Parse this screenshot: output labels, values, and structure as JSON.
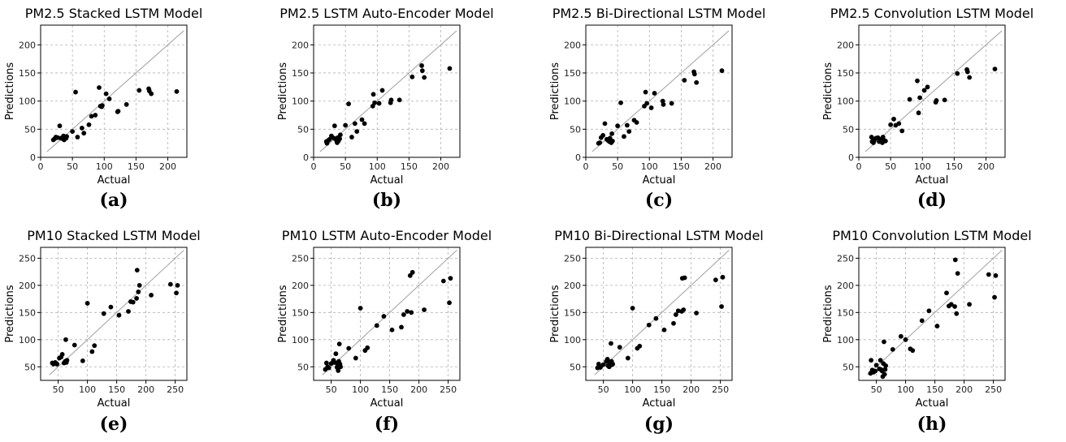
{
  "chart_data": [
    {
      "panel": "(a)",
      "type": "scatter",
      "title": "PM2.5 Stacked LSTM Model",
      "xlabel": "Actual",
      "ylabel": "Predictions",
      "xlim": [
        0,
        230
      ],
      "ylim": [
        0,
        235
      ],
      "xticks": [
        0,
        50,
        100,
        150,
        200
      ],
      "yticks": [
        0,
        50,
        100,
        150,
        200
      ],
      "diagonal": [
        10,
        225
      ],
      "grid": true,
      "points": [
        [
          20,
          31
        ],
        [
          22,
          33
        ],
        [
          24,
          36
        ],
        [
          27,
          35
        ],
        [
          30,
          56
        ],
        [
          32,
          34
        ],
        [
          35,
          33
        ],
        [
          36,
          38
        ],
        [
          37,
          31
        ],
        [
          38,
          36
        ],
        [
          40,
          34
        ],
        [
          41,
          37
        ],
        [
          50,
          46
        ],
        [
          55,
          116
        ],
        [
          58,
          36
        ],
        [
          65,
          52
        ],
        [
          68,
          43
        ],
        [
          76,
          58
        ],
        [
          80,
          73
        ],
        [
          86,
          75
        ],
        [
          92,
          124
        ],
        [
          94,
          91
        ],
        [
          96,
          90
        ],
        [
          97,
          92
        ],
        [
          103,
          113
        ],
        [
          108,
          104
        ],
        [
          121,
          81
        ],
        [
          122,
          82
        ],
        [
          135,
          94
        ],
        [
          155,
          119
        ],
        [
          170,
          122
        ],
        [
          171,
          118
        ],
        [
          174,
          113
        ],
        [
          214,
          117
        ]
      ]
    },
    {
      "panel": "(b)",
      "type": "scatter",
      "title": "PM2.5 LSTM Auto-Encoder Model",
      "xlabel": "Actual",
      "ylabel": "Predictions",
      "xlim": [
        0,
        230
      ],
      "ylim": [
        0,
        235
      ],
      "xticks": [
        0,
        50,
        100,
        150,
        200
      ],
      "yticks": [
        0,
        50,
        100,
        150,
        200
      ],
      "diagonal": [
        10,
        225
      ],
      "grid": true,
      "points": [
        [
          20,
          28
        ],
        [
          21,
          25
        ],
        [
          23,
          30
        ],
        [
          25,
          32
        ],
        [
          28,
          38
        ],
        [
          32,
          34
        ],
        [
          33,
          56
        ],
        [
          36,
          30
        ],
        [
          37,
          26
        ],
        [
          38,
          35
        ],
        [
          39,
          29
        ],
        [
          41,
          33
        ],
        [
          42,
          40
        ],
        [
          50,
          57
        ],
        [
          55,
          95
        ],
        [
          60,
          36
        ],
        [
          65,
          60
        ],
        [
          68,
          46
        ],
        [
          76,
          67
        ],
        [
          80,
          60
        ],
        [
          93,
          91
        ],
        [
          94,
          112
        ],
        [
          96,
          97
        ],
        [
          103,
          96
        ],
        [
          108,
          119
        ],
        [
          121,
          97
        ],
        [
          122,
          102
        ],
        [
          135,
          102
        ],
        [
          155,
          143
        ],
        [
          170,
          163
        ],
        [
          171,
          154
        ],
        [
          174,
          142
        ],
        [
          214,
          158
        ]
      ]
    },
    {
      "panel": "(c)",
      "type": "scatter",
      "title": "PM2.5 Bi-Directional LSTM Model",
      "xlabel": "Actual",
      "ylabel": "Predictions",
      "xlim": [
        0,
        230
      ],
      "ylim": [
        0,
        235
      ],
      "xticks": [
        0,
        50,
        100,
        150,
        200
      ],
      "yticks": [
        0,
        50,
        100,
        150,
        200
      ],
      "diagonal": [
        10,
        225
      ],
      "grid": true,
      "points": [
        [
          20,
          25
        ],
        [
          22,
          26
        ],
        [
          24,
          35
        ],
        [
          27,
          39
        ],
        [
          30,
          60
        ],
        [
          33,
          32
        ],
        [
          35,
          30
        ],
        [
          37,
          28
        ],
        [
          38,
          34
        ],
        [
          40,
          26
        ],
        [
          41,
          42
        ],
        [
          42,
          29
        ],
        [
          50,
          56
        ],
        [
          55,
          97
        ],
        [
          60,
          37
        ],
        [
          65,
          57
        ],
        [
          68,
          46
        ],
        [
          76,
          66
        ],
        [
          80,
          62
        ],
        [
          92,
          91
        ],
        [
          94,
          116
        ],
        [
          96,
          96
        ],
        [
          103,
          88
        ],
        [
          108,
          114
        ],
        [
          121,
          100
        ],
        [
          122,
          94
        ],
        [
          135,
          96
        ],
        [
          155,
          137
        ],
        [
          170,
          152
        ],
        [
          171,
          148
        ],
        [
          174,
          133
        ],
        [
          214,
          154
        ]
      ]
    },
    {
      "panel": "(d)",
      "type": "scatter",
      "title": "PM2.5 Convolution LSTM Model",
      "xlabel": "Actual",
      "ylabel": "Predictions",
      "xlim": [
        0,
        230
      ],
      "ylim": [
        0,
        235
      ],
      "xticks": [
        0,
        50,
        100,
        150,
        200
      ],
      "yticks": [
        0,
        50,
        100,
        150,
        200
      ],
      "diagonal": [
        10,
        225
      ],
      "grid": true,
      "points": [
        [
          20,
          36
        ],
        [
          21,
          28
        ],
        [
          23,
          26
        ],
        [
          24,
          30
        ],
        [
          27,
          34
        ],
        [
          30,
          35
        ],
        [
          32,
          28
        ],
        [
          34,
          32
        ],
        [
          36,
          30
        ],
        [
          37,
          26
        ],
        [
          38,
          36
        ],
        [
          40,
          30
        ],
        [
          42,
          29
        ],
        [
          50,
          58
        ],
        [
          55,
          68
        ],
        [
          58,
          57
        ],
        [
          63,
          60
        ],
        [
          68,
          47
        ],
        [
          80,
          103
        ],
        [
          92,
          136
        ],
        [
          94,
          79
        ],
        [
          96,
          106
        ],
        [
          103,
          119
        ],
        [
          108,
          125
        ],
        [
          121,
          98
        ],
        [
          122,
          101
        ],
        [
          135,
          102
        ],
        [
          155,
          149
        ],
        [
          170,
          156
        ],
        [
          171,
          152
        ],
        [
          174,
          142
        ],
        [
          214,
          157
        ]
      ]
    },
    {
      "panel": "(e)",
      "type": "scatter",
      "title": "PM10 Stacked LSTM Model",
      "xlabel": "Actual",
      "ylabel": "Predictions",
      "xlim": [
        20,
        270
      ],
      "ylim": [
        25,
        270
      ],
      "xticks": [
        50,
        100,
        150,
        200,
        250
      ],
      "yticks": [
        50,
        100,
        150,
        200,
        250
      ],
      "diagonal": [
        35,
        265
      ],
      "grid": true,
      "points": [
        [
          40,
          57
        ],
        [
          42,
          55
        ],
        [
          45,
          58
        ],
        [
          48,
          55
        ],
        [
          52,
          66
        ],
        [
          55,
          68
        ],
        [
          57,
          73
        ],
        [
          60,
          57
        ],
        [
          62,
          60
        ],
        [
          63,
          100
        ],
        [
          64,
          58
        ],
        [
          65,
          62
        ],
        [
          78,
          90
        ],
        [
          92,
          61
        ],
        [
          100,
          167
        ],
        [
          108,
          78
        ],
        [
          112,
          89
        ],
        [
          128,
          148
        ],
        [
          140,
          160
        ],
        [
          154,
          145
        ],
        [
          170,
          152
        ],
        [
          174,
          170
        ],
        [
          178,
          169
        ],
        [
          184,
          176
        ],
        [
          185,
          228
        ],
        [
          187,
          188
        ],
        [
          189,
          200
        ],
        [
          209,
          182
        ],
        [
          242,
          202
        ],
        [
          252,
          186
        ],
        [
          254,
          200
        ]
      ]
    },
    {
      "panel": "(f)",
      "type": "scatter",
      "title": "PM10 LSTM Auto-Encoder Model",
      "xlabel": "Actual",
      "ylabel": "Predictions",
      "xlim": [
        20,
        270
      ],
      "ylim": [
        25,
        270
      ],
      "xticks": [
        50,
        100,
        150,
        200,
        250
      ],
      "yticks": [
        50,
        100,
        150,
        200,
        250
      ],
      "diagonal": [
        35,
        265
      ],
      "grid": true,
      "points": [
        [
          40,
          45
        ],
        [
          42,
          57
        ],
        [
          44,
          50
        ],
        [
          46,
          48
        ],
        [
          50,
          56
        ],
        [
          54,
          62
        ],
        [
          56,
          58
        ],
        [
          58,
          74
        ],
        [
          60,
          49
        ],
        [
          61,
          54
        ],
        [
          62,
          43
        ],
        [
          63,
          60
        ],
        [
          64,
          92
        ],
        [
          65,
          55
        ],
        [
          66,
          50
        ],
        [
          80,
          84
        ],
        [
          92,
          66
        ],
        [
          100,
          158
        ],
        [
          108,
          80
        ],
        [
          112,
          85
        ],
        [
          128,
          126
        ],
        [
          140,
          143
        ],
        [
          154,
          118
        ],
        [
          170,
          123
        ],
        [
          174,
          146
        ],
        [
          180,
          152
        ],
        [
          185,
          218
        ],
        [
          187,
          150
        ],
        [
          189,
          224
        ],
        [
          209,
          155
        ],
        [
          242,
          208
        ],
        [
          252,
          168
        ],
        [
          254,
          213
        ]
      ]
    },
    {
      "panel": "(g)",
      "type": "scatter",
      "title": "PM10 Bi-Directional LSTM Model",
      "xlabel": "Actual",
      "ylabel": "Predictions",
      "xlim": [
        20,
        270
      ],
      "ylim": [
        25,
        270
      ],
      "xticks": [
        50,
        100,
        150,
        200,
        250
      ],
      "yticks": [
        50,
        100,
        150,
        200,
        250
      ],
      "diagonal": [
        35,
        265
      ],
      "grid": true,
      "points": [
        [
          40,
          48
        ],
        [
          42,
          55
        ],
        [
          45,
          49
        ],
        [
          50,
          54
        ],
        [
          55,
          60
        ],
        [
          57,
          64
        ],
        [
          58,
          52
        ],
        [
          60,
          50
        ],
        [
          61,
          58
        ],
        [
          62,
          57
        ],
        [
          63,
          93
        ],
        [
          64,
          60
        ],
        [
          65,
          54
        ],
        [
          66,
          55
        ],
        [
          78,
          86
        ],
        [
          92,
          66
        ],
        [
          100,
          158
        ],
        [
          108,
          84
        ],
        [
          112,
          88
        ],
        [
          128,
          127
        ],
        [
          140,
          139
        ],
        [
          154,
          118
        ],
        [
          170,
          130
        ],
        [
          174,
          146
        ],
        [
          178,
          153
        ],
        [
          184,
          152
        ],
        [
          185,
          213
        ],
        [
          187,
          155
        ],
        [
          189,
          214
        ],
        [
          209,
          149
        ],
        [
          242,
          210
        ],
        [
          252,
          161
        ],
        [
          254,
          215
        ]
      ]
    },
    {
      "panel": "(h)",
      "type": "scatter",
      "title": "PM10 Convolution LSTM Model",
      "xlabel": "Actual",
      "ylabel": "Predictions",
      "xlim": [
        20,
        270
      ],
      "ylim": [
        25,
        270
      ],
      "xticks": [
        50,
        100,
        150,
        200,
        250
      ],
      "yticks": [
        50,
        100,
        150,
        200,
        250
      ],
      "diagonal": [
        35,
        265
      ],
      "grid": true,
      "points": [
        [
          40,
          38
        ],
        [
          41,
          62
        ],
        [
          43,
          44
        ],
        [
          45,
          40
        ],
        [
          48,
          42
        ],
        [
          50,
          53
        ],
        [
          55,
          46
        ],
        [
          57,
          62
        ],
        [
          58,
          45
        ],
        [
          60,
          42
        ],
        [
          61,
          32
        ],
        [
          62,
          56
        ],
        [
          63,
          96
        ],
        [
          64,
          36
        ],
        [
          65,
          45
        ],
        [
          66,
          52
        ],
        [
          78,
          82
        ],
        [
          92,
          106
        ],
        [
          100,
          100
        ],
        [
          108,
          83
        ],
        [
          112,
          80
        ],
        [
          128,
          135
        ],
        [
          140,
          153
        ],
        [
          154,
          125
        ],
        [
          170,
          186
        ],
        [
          174,
          162
        ],
        [
          178,
          165
        ],
        [
          184,
          161
        ],
        [
          185,
          247
        ],
        [
          187,
          148
        ],
        [
          189,
          222
        ],
        [
          209,
          165
        ],
        [
          242,
          220
        ],
        [
          252,
          178
        ],
        [
          254,
          218
        ]
      ]
    }
  ]
}
